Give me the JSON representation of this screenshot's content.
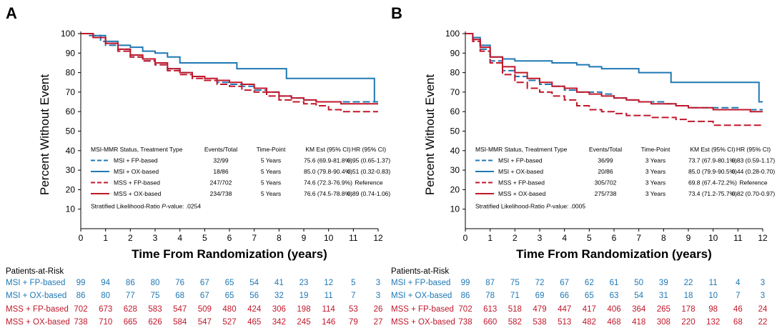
{
  "colors": {
    "msi": "#1f78b4",
    "mss": "#c0182b",
    "axis": "#000000"
  },
  "chart_data": [
    {
      "panel": "A",
      "type": "line",
      "title": "",
      "xlabel": "Time From Randomization (years)",
      "ylabel": "Percent Without Event",
      "xlim": [
        0,
        12
      ],
      "ylim": [
        0,
        100
      ],
      "x_ticks": [
        "0",
        "1",
        "2",
        "3",
        "4",
        "5",
        "6",
        "7",
        "8",
        "9",
        "10",
        "11",
        "12"
      ],
      "y_ticks": [
        "10",
        "20",
        "30",
        "40",
        "50",
        "60",
        "70",
        "80",
        "90",
        "100"
      ],
      "series": [
        {
          "name": "MSI + FP-based",
          "style": "dashed",
          "color": "msi",
          "x": [
            0,
            0.3,
            0.8,
            1.0,
            1.5,
            2.0,
            2.5,
            3.0,
            3.5,
            4.0,
            4.5,
            5.0,
            5.5,
            6.0,
            6.5,
            7.0,
            7.5,
            8.0,
            8.5,
            9.0,
            9.5,
            10.0,
            10.5,
            11.0,
            11.5,
            11.8,
            12.0
          ],
          "y": [
            100,
            99,
            96,
            94,
            92,
            88,
            86,
            84,
            82,
            80,
            78,
            76,
            75,
            74,
            73,
            71,
            70,
            68,
            67,
            66,
            65,
            65,
            65,
            65,
            65,
            65,
            65
          ]
        },
        {
          "name": "MSI + OX-based",
          "style": "solid",
          "color": "msi",
          "x": [
            0,
            0.5,
            1.0,
            1.5,
            2.0,
            2.5,
            3.0,
            3.5,
            4.0,
            5.0,
            6.0,
            6.3,
            7.0,
            8.0,
            8.3,
            9.0,
            10.0,
            11.0,
            11.8,
            11.85,
            12.0
          ],
          "y": [
            100,
            99,
            96,
            94,
            93,
            91,
            90,
            88,
            85,
            85,
            85,
            82,
            82,
            82,
            77,
            77,
            77,
            77,
            77,
            65,
            65
          ]
        },
        {
          "name": "MSS + FP-based",
          "style": "dashed",
          "color": "mss",
          "x": [
            0,
            0.5,
            1.0,
            1.5,
            2.0,
            2.5,
            3.0,
            3.5,
            4.0,
            4.5,
            5.0,
            5.5,
            6.0,
            6.5,
            7.0,
            7.5,
            8.0,
            8.5,
            9.0,
            9.5,
            10.0,
            10.5,
            11.0,
            11.5,
            12.0
          ],
          "y": [
            100,
            98,
            95,
            91,
            88,
            86,
            84,
            81,
            79,
            77,
            76,
            74,
            73,
            71,
            70,
            68,
            66,
            65,
            64,
            63,
            61,
            60,
            60,
            60,
            60
          ]
        },
        {
          "name": "MSS + OX-based",
          "style": "solid",
          "color": "mss",
          "x": [
            0,
            0.5,
            1.0,
            1.5,
            2.0,
            2.5,
            3.0,
            3.5,
            4.0,
            4.5,
            5.0,
            5.5,
            6.0,
            6.5,
            7.0,
            7.5,
            8.0,
            8.5,
            9.0,
            9.5,
            10.0,
            10.5,
            11.0,
            11.5,
            12.0
          ],
          "y": [
            100,
            98,
            95,
            92,
            89,
            87,
            85,
            82,
            80,
            78,
            77,
            76,
            75,
            74,
            72,
            70,
            68,
            67,
            66,
            65,
            65,
            64,
            64,
            64,
            64
          ]
        }
      ],
      "legend": {
        "headers": [
          "MSI-MMR Status, Treatment Type",
          "Events/Total",
          "Time-Point",
          "KM Est (95% CI)",
          "HR (95% CI)"
        ],
        "rows": [
          {
            "label": "MSI + FP-based",
            "events": "32/99",
            "time": "5 Years",
            "km": "75.6 (69.9-81.8%)",
            "hr": "0.95 (0.65-1.37)"
          },
          {
            "label": "MSI + OX-based",
            "events": "18/86",
            "time": "5 Years",
            "km": "85.0 (79.8-90.4%)",
            "hr": "0.51 (0.32-0.83)"
          },
          {
            "label": "MSS + FP-based",
            "events": "247/702",
            "time": "5 Years",
            "km": "74.6 (72.3-76.9%)",
            "hr": "Reference"
          },
          {
            "label": "MSS + OX-based",
            "events": "234/738",
            "time": "5 Years",
            "km": "76.6 (74.5-78.8%)",
            "hr": "0.89 (0.74-1.06)"
          }
        ],
        "pvalue_prefix": "Stratified Likelihood-Ratio ",
        "pvalue_p": "P",
        "pvalue_suffix": "-value: .0254"
      }
    },
    {
      "panel": "B",
      "type": "line",
      "title": "",
      "xlabel": "Time From Randomization (years)",
      "ylabel": "Percent Without Event",
      "xlim": [
        0,
        12
      ],
      "ylim": [
        0,
        100
      ],
      "x_ticks": [
        "0",
        "1",
        "2",
        "3",
        "4",
        "5",
        "6",
        "7",
        "8",
        "9",
        "10",
        "11",
        "12"
      ],
      "y_ticks": [
        "10",
        "20",
        "30",
        "40",
        "50",
        "60",
        "70",
        "80",
        "90",
        "100"
      ],
      "series": [
        {
          "name": "MSI + FP-based",
          "style": "dashed",
          "color": "msi",
          "x": [
            0,
            0.3,
            0.6,
            1.0,
            1.5,
            2.0,
            2.5,
            3.0,
            3.5,
            4.0,
            4.5,
            5.0,
            5.5,
            6.0,
            6.5,
            7.0,
            7.5,
            8.0,
            8.5,
            9.0,
            9.5,
            10.0,
            10.5,
            11.0,
            11.5,
            12.0
          ],
          "y": [
            100,
            97,
            92,
            86,
            81,
            78,
            76,
            74,
            73,
            71,
            70,
            70,
            69,
            67,
            66,
            65,
            65,
            64,
            63,
            62,
            62,
            62,
            62,
            61,
            61,
            61
          ]
        },
        {
          "name": "MSI + OX-based",
          "style": "solid",
          "color": "msi",
          "x": [
            0,
            0.3,
            0.6,
            1.0,
            1.5,
            2.0,
            2.5,
            3.0,
            3.5,
            4.0,
            4.5,
            5.0,
            5.5,
            6.0,
            7.0,
            8.0,
            8.3,
            9.0,
            10.0,
            11.0,
            11.8,
            11.85,
            12.0
          ],
          "y": [
            100,
            98,
            94,
            88,
            87,
            86,
            86,
            86,
            85,
            85,
            84,
            83,
            82,
            82,
            80,
            80,
            75,
            75,
            75,
            75,
            75,
            65,
            65
          ]
        },
        {
          "name": "MSS + FP-based",
          "style": "dashed",
          "color": "mss",
          "x": [
            0,
            0.3,
            0.6,
            1.0,
            1.5,
            2.0,
            2.5,
            3.0,
            3.5,
            4.0,
            4.5,
            5.0,
            5.5,
            6.0,
            6.5,
            7.0,
            7.5,
            8.0,
            8.5,
            9.0,
            9.5,
            10.0,
            10.5,
            11.0,
            11.5,
            12.0
          ],
          "y": [
            100,
            96,
            91,
            85,
            79,
            75,
            72,
            70,
            68,
            66,
            63,
            61,
            60,
            59,
            58,
            58,
            57,
            57,
            56,
            55,
            55,
            53,
            53,
            53,
            53,
            53
          ]
        },
        {
          "name": "MSS + OX-based",
          "style": "solid",
          "color": "mss",
          "x": [
            0,
            0.3,
            0.6,
            1.0,
            1.5,
            2.0,
            2.5,
            3.0,
            3.5,
            4.0,
            4.5,
            5.0,
            5.5,
            6.0,
            6.5,
            7.0,
            7.5,
            8.0,
            8.5,
            9.0,
            9.5,
            10.0,
            10.5,
            11.0,
            11.5,
            12.0
          ],
          "y": [
            100,
            97,
            93,
            88,
            83,
            80,
            77,
            75,
            73,
            72,
            70,
            69,
            68,
            67,
            66,
            65,
            64,
            64,
            63,
            62,
            62,
            61,
            61,
            61,
            60,
            60
          ]
        }
      ],
      "legend": {
        "headers": [
          "MSI-MMR Status, Treatment Type",
          "Events/Total",
          "Time-Point",
          "KM Est (95% CI)",
          "HR (95% CI)"
        ],
        "rows": [
          {
            "label": "MSI + FP-based",
            "events": "36/99",
            "time": "3 Years",
            "km": "73.7 (67.9-80.1%)",
            "hr": "0.83 (0.59-1.17)"
          },
          {
            "label": "MSI + OX-based",
            "events": "20/86",
            "time": "3 Years",
            "km": "85.0 (79.9-90.5%)",
            "hr": "0.44 (0.28-0.70)"
          },
          {
            "label": "MSS + FP-based",
            "events": "305/702",
            "time": "3 Years",
            "km": "69.8 (67.4-72.2%)",
            "hr": "Reference"
          },
          {
            "label": "MSS + OX-based",
            "events": "275/738",
            "time": "3 Years",
            "km": "73.4 (71.2-75.7%)",
            "hr": "0.82 (0.70-0.97)"
          }
        ],
        "pvalue_prefix": "Stratified Likelihood-Ratio ",
        "pvalue_p": "P",
        "pvalue_suffix": "-value: .0005"
      }
    }
  ],
  "panels": [
    {
      "letter": "A",
      "risk_title": "Patients-at-Risk",
      "risk_rows": [
        {
          "label": "MSI + FP-based",
          "color": "msi",
          "values": [
            "99",
            "94",
            "86",
            "80",
            "76",
            "67",
            "65",
            "54",
            "41",
            "23",
            "12",
            "5",
            "3"
          ]
        },
        {
          "label": "MSI + OX-based",
          "color": "msi",
          "values": [
            "86",
            "80",
            "77",
            "75",
            "68",
            "67",
            "65",
            "56",
            "32",
            "19",
            "11",
            "7",
            "3"
          ]
        },
        {
          "label": "MSS + FP-based",
          "color": "mss",
          "values": [
            "702",
            "673",
            "628",
            "583",
            "547",
            "509",
            "480",
            "424",
            "306",
            "198",
            "114",
            "53",
            "26"
          ]
        },
        {
          "label": "MSS + OX-based",
          "color": "mss",
          "values": [
            "738",
            "710",
            "665",
            "626",
            "584",
            "547",
            "527",
            "465",
            "342",
            "245",
            "146",
            "79",
            "27"
          ]
        }
      ]
    },
    {
      "letter": "B",
      "risk_title": "Patients-at-Risk",
      "risk_rows": [
        {
          "label": "MSI + FP-based",
          "color": "msi",
          "values": [
            "99",
            "87",
            "75",
            "72",
            "67",
            "62",
            "61",
            "50",
            "39",
            "22",
            "11",
            "4",
            "3"
          ]
        },
        {
          "label": "MSI + OX-based",
          "color": "msi",
          "values": [
            "86",
            "78",
            "71",
            "69",
            "66",
            "65",
            "63",
            "54",
            "31",
            "18",
            "10",
            "7",
            "3"
          ]
        },
        {
          "label": "MSS + FP-based",
          "color": "mss",
          "values": [
            "702",
            "613",
            "518",
            "479",
            "447",
            "417",
            "406",
            "364",
            "265",
            "178",
            "98",
            "46",
            "24"
          ]
        },
        {
          "label": "MSS + OX-based",
          "color": "mss",
          "values": [
            "738",
            "660",
            "582",
            "538",
            "513",
            "482",
            "468",
            "418",
            "308",
            "220",
            "132",
            "68",
            "22"
          ]
        }
      ]
    }
  ]
}
